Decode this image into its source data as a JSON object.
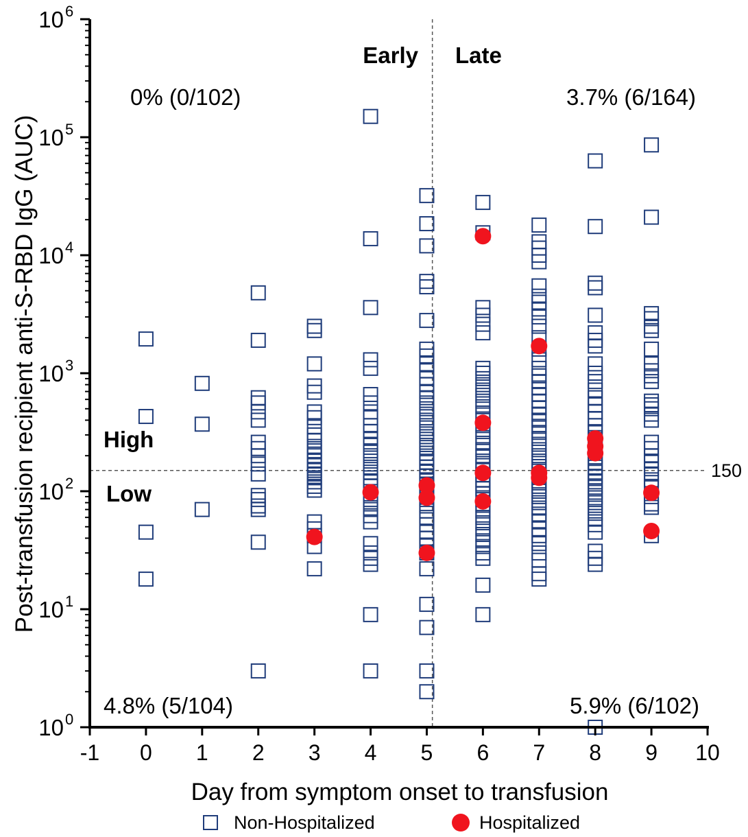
{
  "chart_data": {
    "type": "scatter",
    "xlabel": "Day from symptom onset to transfusion",
    "ylabel": "Post-transfusion recipient anti-S-RBD IgG (AUC)",
    "xlim": [
      -1,
      10
    ],
    "ylim": [
      1,
      1000000
    ],
    "yscale": "log",
    "xticks": [
      "-1",
      "0",
      "1",
      "2",
      "3",
      "4",
      "5",
      "6",
      "7",
      "8",
      "9",
      "10"
    ],
    "ytick_bases": [
      "10",
      "10",
      "10",
      "10",
      "10",
      "10",
      "10"
    ],
    "ytick_exponents": [
      "0",
      "1",
      "2",
      "3",
      "4",
      "5",
      "6"
    ],
    "reference_lines": {
      "horizontal": {
        "y": 150,
        "label": "150"
      },
      "vertical": {
        "x": 5.1
      }
    },
    "annotations": {
      "early": "Early",
      "late": "Late",
      "high": "High",
      "low": "Low",
      "top_left": "0% (0/102)",
      "top_right": "3.7% (6/164)",
      "bottom_left": "4.8% (5/104)",
      "bottom_right": "5.9% (6/102)"
    },
    "legend": {
      "position": "bottom",
      "entries": [
        "Non-Hospitalized",
        "Hospitalized"
      ]
    },
    "colors": {
      "non_hospitalized": "#1f3c7a",
      "hospitalized": "#f0141e",
      "reference_line": "#555555"
    },
    "series": [
      {
        "name": "Non-Hospitalized",
        "marker": "open-square",
        "points": [
          [
            0,
            1950
          ],
          [
            0,
            430
          ],
          [
            0,
            45
          ],
          [
            0,
            18
          ],
          [
            1,
            820
          ],
          [
            1,
            370
          ],
          [
            1,
            70
          ],
          [
            2,
            4800
          ],
          [
            2,
            1900
          ],
          [
            2,
            620
          ],
          [
            2,
            560
          ],
          [
            2,
            470
          ],
          [
            2,
            400
          ],
          [
            2,
            260
          ],
          [
            2,
            230
          ],
          [
            2,
            200
          ],
          [
            2,
            170
          ],
          [
            2,
            140
          ],
          [
            2,
            92
          ],
          [
            2,
            85
          ],
          [
            2,
            75
          ],
          [
            2,
            70
          ],
          [
            2,
            37
          ],
          [
            2,
            3
          ],
          [
            3,
            2500
          ],
          [
            3,
            2300
          ],
          [
            3,
            1200
          ],
          [
            3,
            780
          ],
          [
            3,
            690
          ],
          [
            3,
            470
          ],
          [
            3,
            420
          ],
          [
            3,
            350
          ],
          [
            3,
            300
          ],
          [
            3,
            270
          ],
          [
            3,
            240
          ],
          [
            3,
            220
          ],
          [
            3,
            200
          ],
          [
            3,
            180
          ],
          [
            3,
            165
          ],
          [
            3,
            150
          ],
          [
            3,
            140
          ],
          [
            3,
            130
          ],
          [
            3,
            120
          ],
          [
            3,
            110
          ],
          [
            3,
            102
          ],
          [
            3,
            55
          ],
          [
            3,
            48
          ],
          [
            3,
            42
          ],
          [
            3,
            34
          ],
          [
            3,
            22
          ],
          [
            4,
            150000
          ],
          [
            4,
            13800
          ],
          [
            4,
            3600
          ],
          [
            4,
            1300
          ],
          [
            4,
            1100
          ],
          [
            4,
            660
          ],
          [
            4,
            560
          ],
          [
            4,
            470
          ],
          [
            4,
            420
          ],
          [
            4,
            360
          ],
          [
            4,
            320
          ],
          [
            4,
            280
          ],
          [
            4,
            250
          ],
          [
            4,
            220
          ],
          [
            4,
            200
          ],
          [
            4,
            180
          ],
          [
            4,
            160
          ],
          [
            4,
            145
          ],
          [
            4,
            130
          ],
          [
            4,
            120
          ],
          [
            4,
            110
          ],
          [
            4,
            95
          ],
          [
            4,
            85
          ],
          [
            4,
            78
          ],
          [
            4,
            70
          ],
          [
            4,
            62
          ],
          [
            4,
            55
          ],
          [
            4,
            36
          ],
          [
            4,
            30
          ],
          [
            4,
            27
          ],
          [
            4,
            24
          ],
          [
            4,
            9
          ],
          [
            4,
            3
          ],
          [
            5,
            32000
          ],
          [
            5,
            18500
          ],
          [
            5,
            12000
          ],
          [
            5,
            6000
          ],
          [
            5,
            5400
          ],
          [
            5,
            2800
          ],
          [
            5,
            1600
          ],
          [
            5,
            1400
          ],
          [
            5,
            1200
          ],
          [
            5,
            1050
          ],
          [
            5,
            900
          ],
          [
            5,
            800
          ],
          [
            5,
            700
          ],
          [
            5,
            620
          ],
          [
            5,
            560
          ],
          [
            5,
            500
          ],
          [
            5,
            450
          ],
          [
            5,
            400
          ],
          [
            5,
            360
          ],
          [
            5,
            320
          ],
          [
            5,
            290
          ],
          [
            5,
            260
          ],
          [
            5,
            235
          ],
          [
            5,
            210
          ],
          [
            5,
            190
          ],
          [
            5,
            175
          ],
          [
            5,
            160
          ],
          [
            5,
            148
          ],
          [
            5,
            135
          ],
          [
            5,
            125
          ],
          [
            5,
            115
          ],
          [
            5,
            105
          ],
          [
            5,
            95
          ],
          [
            5,
            85
          ],
          [
            5,
            75
          ],
          [
            5,
            68
          ],
          [
            5,
            60
          ],
          [
            5,
            52
          ],
          [
            5,
            45
          ],
          [
            5,
            40
          ],
          [
            5,
            35
          ],
          [
            5,
            30
          ],
          [
            5,
            22
          ],
          [
            5,
            11
          ],
          [
            5,
            7
          ],
          [
            5,
            3
          ],
          [
            5,
            2
          ],
          [
            6,
            28000
          ],
          [
            6,
            15500
          ],
          [
            6,
            3600
          ],
          [
            6,
            3100
          ],
          [
            6,
            2600
          ],
          [
            6,
            2200
          ],
          [
            6,
            1100
          ],
          [
            6,
            1000
          ],
          [
            6,
            900
          ],
          [
            6,
            800
          ],
          [
            6,
            720
          ],
          [
            6,
            650
          ],
          [
            6,
            580
          ],
          [
            6,
            520
          ],
          [
            6,
            460
          ],
          [
            6,
            410
          ],
          [
            6,
            360
          ],
          [
            6,
            320
          ],
          [
            6,
            285
          ],
          [
            6,
            255
          ],
          [
            6,
            225
          ],
          [
            6,
            200
          ],
          [
            6,
            180
          ],
          [
            6,
            165
          ],
          [
            6,
            150
          ],
          [
            6,
            138
          ],
          [
            6,
            125
          ],
          [
            6,
            115
          ],
          [
            6,
            105
          ],
          [
            6,
            95
          ],
          [
            6,
            85
          ],
          [
            6,
            76
          ],
          [
            6,
            68
          ],
          [
            6,
            60
          ],
          [
            6,
            54
          ],
          [
            6,
            48
          ],
          [
            6,
            43
          ],
          [
            6,
            38
          ],
          [
            6,
            34
          ],
          [
            6,
            30
          ],
          [
            6,
            27
          ],
          [
            6,
            16
          ],
          [
            6,
            9
          ],
          [
            7,
            18000
          ],
          [
            7,
            13000
          ],
          [
            7,
            11500
          ],
          [
            7,
            10000
          ],
          [
            7,
            8800
          ],
          [
            7,
            5500
          ],
          [
            7,
            4500
          ],
          [
            7,
            4000
          ],
          [
            7,
            3500
          ],
          [
            7,
            3000
          ],
          [
            7,
            2500
          ],
          [
            7,
            2000
          ],
          [
            7,
            1600
          ],
          [
            7,
            1300
          ],
          [
            7,
            1100
          ],
          [
            7,
            950
          ],
          [
            7,
            850
          ],
          [
            7,
            750
          ],
          [
            7,
            660
          ],
          [
            7,
            580
          ],
          [
            7,
            510
          ],
          [
            7,
            450
          ],
          [
            7,
            400
          ],
          [
            7,
            355
          ],
          [
            7,
            315
          ],
          [
            7,
            280
          ],
          [
            7,
            250
          ],
          [
            7,
            225
          ],
          [
            7,
            200
          ],
          [
            7,
            180
          ],
          [
            7,
            162
          ],
          [
            7,
            148
          ],
          [
            7,
            135
          ],
          [
            7,
            122
          ],
          [
            7,
            110
          ],
          [
            7,
            100
          ],
          [
            7,
            90
          ],
          [
            7,
            80
          ],
          [
            7,
            72
          ],
          [
            7,
            64
          ],
          [
            7,
            56
          ],
          [
            7,
            48
          ],
          [
            7,
            42
          ],
          [
            7,
            36
          ],
          [
            7,
            30
          ],
          [
            7,
            26
          ],
          [
            7,
            20
          ],
          [
            7,
            18
          ],
          [
            8,
            63000
          ],
          [
            8,
            17500
          ],
          [
            8,
            5800
          ],
          [
            8,
            5300
          ],
          [
            8,
            3100
          ],
          [
            8,
            2200
          ],
          [
            8,
            1900
          ],
          [
            8,
            1700
          ],
          [
            8,
            1200
          ],
          [
            8,
            1000
          ],
          [
            8,
            850
          ],
          [
            8,
            720
          ],
          [
            8,
            620
          ],
          [
            8,
            540
          ],
          [
            8,
            470
          ],
          [
            8,
            410
          ],
          [
            8,
            360
          ],
          [
            8,
            320
          ],
          [
            8,
            285
          ],
          [
            8,
            250
          ],
          [
            8,
            220
          ],
          [
            8,
            195
          ],
          [
            8,
            175
          ],
          [
            8,
            160
          ],
          [
            8,
            145
          ],
          [
            8,
            132
          ],
          [
            8,
            120
          ],
          [
            8,
            108
          ],
          [
            8,
            98
          ],
          [
            8,
            88
          ],
          [
            8,
            80
          ],
          [
            8,
            72
          ],
          [
            8,
            65
          ],
          [
            8,
            58
          ],
          [
            8,
            52
          ],
          [
            8,
            45
          ],
          [
            8,
            31
          ],
          [
            8,
            27
          ],
          [
            8,
            24
          ],
          [
            8,
            1
          ],
          [
            9,
            86000
          ],
          [
            9,
            21000
          ],
          [
            9,
            3200
          ],
          [
            9,
            2900
          ],
          [
            9,
            2500
          ],
          [
            9,
            2300
          ],
          [
            9,
            1600
          ],
          [
            9,
            1200
          ],
          [
            9,
            1050
          ],
          [
            9,
            950
          ],
          [
            9,
            850
          ],
          [
            9,
            580
          ],
          [
            9,
            540
          ],
          [
            9,
            500
          ],
          [
            9,
            450
          ],
          [
            9,
            400
          ],
          [
            9,
            260
          ],
          [
            9,
            230
          ],
          [
            9,
            200
          ],
          [
            9,
            180
          ],
          [
            9,
            155
          ],
          [
            9,
            140
          ],
          [
            9,
            125
          ],
          [
            9,
            110
          ],
          [
            9,
            90
          ],
          [
            9,
            78
          ],
          [
            9,
            73
          ],
          [
            9,
            42
          ]
        ]
      },
      {
        "name": "Hospitalized",
        "marker": "filled-circle",
        "points": [
          [
            3,
            41
          ],
          [
            4,
            98
          ],
          [
            5,
            112
          ],
          [
            5,
            88
          ],
          [
            5,
            30
          ],
          [
            6,
            14500
          ],
          [
            6,
            380
          ],
          [
            6,
            143
          ],
          [
            6,
            82
          ],
          [
            7,
            1700
          ],
          [
            7,
            143
          ],
          [
            7,
            130
          ],
          [
            8,
            280
          ],
          [
            8,
            240
          ],
          [
            8,
            210
          ],
          [
            9,
            97
          ],
          [
            9,
            46
          ]
        ]
      }
    ]
  }
}
